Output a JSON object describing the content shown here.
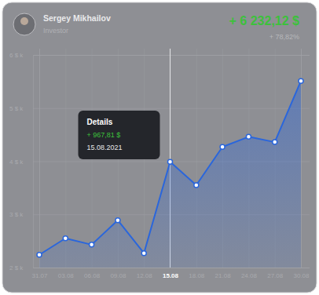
{
  "header": {
    "name": "Sergey Mikhailov",
    "role": "Investor",
    "gain": "+ 6 232,12 $",
    "gain_percent": "+ 78,82%"
  },
  "chart_data": {
    "type": "area",
    "color": "#2a66dc",
    "marker": "circle",
    "grid": true,
    "categories": [
      "31.07",
      "03.08",
      "06.08",
      "09.08",
      "12.08",
      "15.08",
      "18.08",
      "21.08",
      "24.08",
      "27.08",
      "30.08"
    ],
    "values": [
      2.24,
      2.55,
      2.43,
      2.89,
      2.27,
      3.99,
      3.55,
      4.27,
      4.46,
      4.36,
      5.51
    ],
    "ylim": [
      2,
      6
    ],
    "yticks": [
      {
        "value": 2,
        "label": "2 $ k"
      },
      {
        "value": 3,
        "label": "3 $ k"
      },
      {
        "value": 4,
        "label": "4 $ k"
      },
      {
        "value": 5,
        "label": "5 $ k"
      },
      {
        "value": 6,
        "label": "6 $ k"
      }
    ],
    "annotations": [
      {
        "x": "15.08",
        "label": "Details",
        "text": "+ 967,81 $",
        "date": "15.08.2021"
      }
    ]
  }
}
